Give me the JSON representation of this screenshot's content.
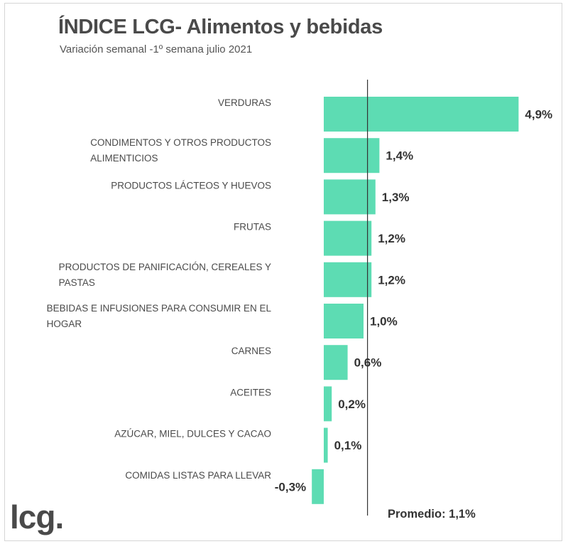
{
  "header": {
    "title": "ÍNDICE LCG- Alimentos y bebidas",
    "subtitle": "Variación semanal -1º semana julio 2021"
  },
  "logo": {
    "text": "lcg."
  },
  "chart_data": {
    "type": "bar",
    "orientation": "horizontal",
    "title": "ÍNDICE LCG- Alimentos y bebidas",
    "subtitle": "Variación semanal -1º semana julio 2021",
    "categories": [
      [
        "VERDURAS"
      ],
      [
        "CONDIMENTOS Y OTROS PRODUCTOS",
        "ALIMENTICIOS"
      ],
      [
        "PRODUCTOS LÁCTEOS Y HUEVOS"
      ],
      [
        "FRUTAS"
      ],
      [
        "PRODUCTOS DE PANIFICACIÓN, CEREALES Y",
        "PASTAS"
      ],
      [
        "BEBIDAS E INFUSIONES PARA CONSUMIR EN EL",
        "HOGAR"
      ],
      [
        "CARNES"
      ],
      [
        "ACEITES"
      ],
      [
        "AZÚCAR, MIEL, DULCES Y CACAO"
      ],
      [
        "COMIDAS LISTAS PARA LLEVAR"
      ]
    ],
    "values": [
      4.9,
      1.4,
      1.3,
      1.2,
      1.2,
      1.0,
      0.6,
      0.2,
      0.1,
      -0.3
    ],
    "value_labels": [
      "4,9%",
      "1,4%",
      "1,3%",
      "1,2%",
      "1,2%",
      "1,0%",
      "0,6%",
      "0,2%",
      "0,1%",
      "-0,3%"
    ],
    "average": {
      "value": 1.1,
      "label": "Promedio: 1,1%"
    },
    "bar_color": "#5ddcb3",
    "reference_line_color": "#333333",
    "grid": false,
    "legend": "none"
  }
}
